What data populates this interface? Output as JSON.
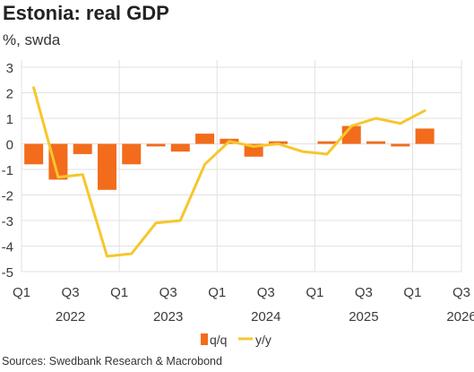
{
  "title": "Estonia: real GDP",
  "subtitle": "%, swda",
  "source": "Sources: Swedbank Research & Macrobond",
  "colors": {
    "bar": "#f26c1c",
    "line": "#f6c72c",
    "grid": "#e1e1e1",
    "text": "#3a3a3a"
  },
  "chart_data": {
    "type": "bar",
    "title": "Estonia: real GDP",
    "ylabel": "%, swda",
    "ylim": [
      -5,
      3
    ],
    "y_ticks": [
      3,
      2,
      1,
      0,
      -1,
      -2,
      -3,
      -4,
      -5
    ],
    "grid": true,
    "legend_position": "bottom-right",
    "quarter_tick_labels": [
      "Q1",
      "Q3",
      "Q1",
      "Q3",
      "Q1",
      "Q3",
      "Q1",
      "Q3",
      "Q1",
      "Q3"
    ],
    "year_labels": [
      "2022",
      "2023",
      "2024",
      "2025",
      "2026"
    ],
    "categories": [
      "2022 Q1",
      "2022 Q2",
      "2022 Q3",
      "2022 Q4",
      "2023 Q1",
      "2023 Q2",
      "2023 Q3",
      "2023 Q4",
      "2024 Q1",
      "2024 Q2",
      "2024 Q3",
      "2024 Q4",
      "2025 Q1",
      "2025 Q2",
      "2025 Q3",
      "2025 Q4",
      "2026 Q1",
      "2026 Q2"
    ],
    "series": [
      {
        "name": "q/q",
        "type": "bar",
        "values": [
          -0.8,
          -1.4,
          -0.4,
          -1.8,
          -0.8,
          -0.1,
          -0.3,
          0.4,
          0.2,
          -0.5,
          0.1,
          null,
          0.1,
          0.7,
          0.1,
          -0.1,
          0.6,
          null
        ]
      },
      {
        "name": "y/y",
        "type": "line",
        "values": [
          2.2,
          -1.3,
          -1.2,
          -4.4,
          -4.3,
          -3.1,
          -3.0,
          -0.8,
          0.1,
          -0.1,
          0.0,
          -0.3,
          -0.4,
          0.7,
          1.0,
          0.8,
          1.3,
          null
        ]
      }
    ]
  }
}
